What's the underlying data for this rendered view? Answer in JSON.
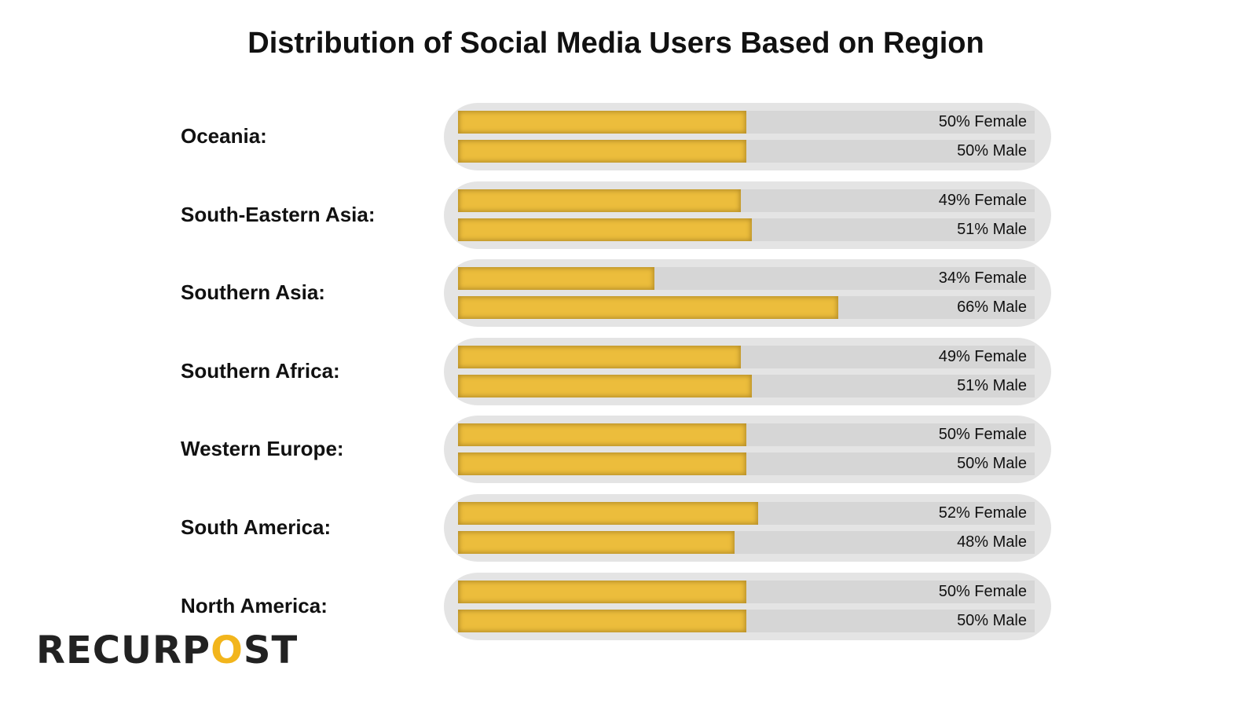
{
  "chart_data": {
    "type": "bar",
    "title": "Distribution of Social Media Users Based on Region",
    "xlim": [
      0,
      100
    ],
    "colors": {
      "fill": "#ecbd3c",
      "track": "#d6d6d6",
      "pill": "#e4e4e4"
    },
    "rows": [
      {
        "region": "Oceania:",
        "female": 50,
        "male": 50,
        "female_label": "50% Female",
        "male_label": "50% Male"
      },
      {
        "region": "South-Eastern Asia:",
        "female": 49,
        "male": 51,
        "female_label": "49% Female",
        "male_label": "51% Male"
      },
      {
        "region": "Southern Asia:",
        "female": 34,
        "male": 66,
        "female_label": "34% Female",
        "male_label": "66% Male"
      },
      {
        "region": "Southern Africa:",
        "female": 49,
        "male": 51,
        "female_label": "49% Female",
        "male_label": "51% Male"
      },
      {
        "region": "Western Europe:",
        "female": 50,
        "male": 50,
        "female_label": "50% Female",
        "male_label": "50% Male"
      },
      {
        "region": "South America:",
        "female": 52,
        "male": 48,
        "female_label": "52% Female",
        "male_label": "48% Male"
      },
      {
        "region": "North America:",
        "female": 50,
        "male": 50,
        "female_label": "50% Female",
        "male_label": "50% Male"
      }
    ]
  },
  "logo": {
    "text": "RECURPOST",
    "pre": "RECURP",
    "o": "O",
    "post": "ST"
  }
}
